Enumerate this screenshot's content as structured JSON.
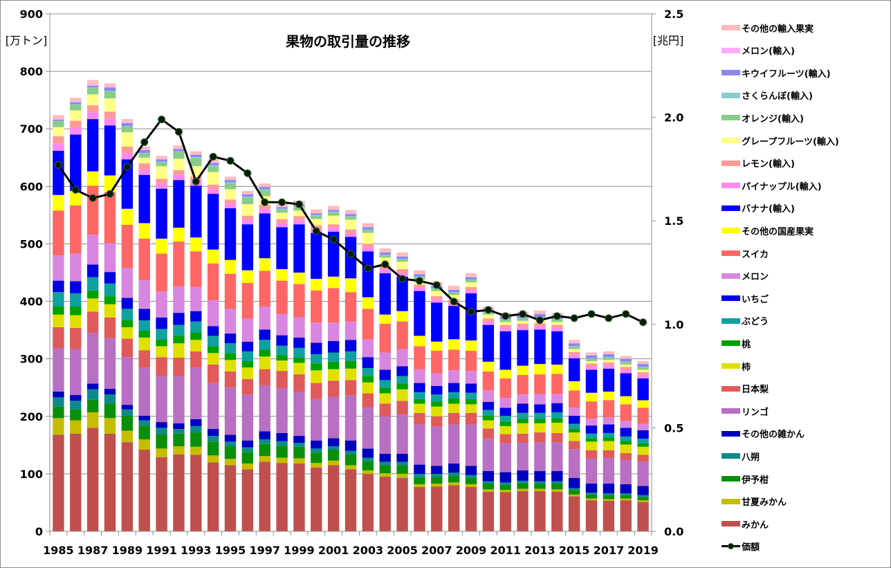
{
  "chart_data": {
    "type": "bar",
    "stacked": true,
    "title": "果物の取引量の推移",
    "ylabel_left": "[万トン]",
    "ylabel_right": "[兆円]",
    "ylim_left": [
      0,
      900
    ],
    "yticks_left": [
      0,
      100,
      200,
      300,
      400,
      500,
      600,
      700,
      800,
      900
    ],
    "ylim_right": [
      0,
      2.5
    ],
    "yticks_right": [
      "0.0",
      "0.5",
      "1.0",
      "1.5",
      "2.0",
      "2.5"
    ],
    "grid": true,
    "legend_position": "right",
    "categories": [
      "1985",
      "1986",
      "1987",
      "1988",
      "1989",
      "1990",
      "1991",
      "1992",
      "1993",
      "1994",
      "1995",
      "1996",
      "1997",
      "1998",
      "1999",
      "2000",
      "2001",
      "2002",
      "2003",
      "2004",
      "2005",
      "2006",
      "2007",
      "2008",
      "2009",
      "2010",
      "2011",
      "2012",
      "2013",
      "2014",
      "2015",
      "2016",
      "2017",
      "2018",
      "2019"
    ],
    "xtick_labels": [
      "1985",
      "1987",
      "1989",
      "1991",
      "1993",
      "1995",
      "1997",
      "1999",
      "2001",
      "2003",
      "2005",
      "2007",
      "2009",
      "2011",
      "2013",
      "2015",
      "2017",
      "2019"
    ],
    "series": [
      {
        "name": "みかん",
        "color": "#c0504d",
        "values": [
          168,
          170,
          180,
          170,
          155,
          142,
          129,
          134,
          133,
          120,
          115,
          108,
          121,
          119,
          118,
          111,
          115,
          108,
          100,
          95,
          93,
          77,
          78,
          80,
          77,
          69,
          68,
          70,
          70,
          69,
          61,
          54,
          53,
          54,
          51
        ]
      },
      {
        "name": "甘夏みかん",
        "color": "#c4bd00",
        "values": [
          29,
          23,
          27,
          27,
          20,
          18,
          15,
          14,
          14,
          12,
          11,
          10,
          10,
          9,
          9,
          8,
          8,
          7,
          6,
          6,
          7,
          5,
          5,
          5,
          5,
          4,
          4,
          4,
          4,
          4,
          3,
          3,
          3,
          3,
          3
        ]
      },
      {
        "name": "伊予柑",
        "color": "#0a8f0a",
        "values": [
          20,
          19,
          22,
          25,
          26,
          24,
          25,
          22,
          25,
          24,
          22,
          20,
          21,
          21,
          20,
          18,
          19,
          19,
          16,
          14,
          15,
          12,
          12,
          12,
          11,
          10,
          9,
          10,
          9,
          10,
          8,
          7,
          7,
          6,
          6
        ]
      },
      {
        "name": "八朔",
        "color": "#0e8a8a",
        "values": [
          16,
          15,
          18,
          16,
          11,
          9,
          11,
          8,
          11,
          10,
          8,
          8,
          8,
          8,
          7,
          7,
          6,
          6,
          6,
          6,
          6,
          6,
          5,
          5,
          5,
          4,
          4,
          4,
          4,
          4,
          3,
          3,
          3,
          3,
          3
        ]
      },
      {
        "name": "その他の雑かん",
        "color": "#0000c0",
        "values": [
          10,
          10,
          10,
          10,
          8,
          8,
          10,
          10,
          12,
          12,
          12,
          12,
          14,
          14,
          12,
          14,
          14,
          18,
          16,
          14,
          14,
          16,
          14,
          16,
          16,
          18,
          18,
          18,
          18,
          18,
          18,
          16,
          17,
          16,
          16
        ]
      },
      {
        "name": "リンゴ",
        "color": "#b86fc4",
        "values": [
          75,
          80,
          88,
          88,
          83,
          84,
          80,
          82,
          90,
          80,
          82,
          80,
          80,
          78,
          77,
          72,
          72,
          78,
          72,
          65,
          68,
          70,
          68,
          68,
          72,
          56,
          50,
          48,
          50,
          50,
          50,
          44,
          45,
          42,
          42
        ]
      },
      {
        "name": "日本梨",
        "color": "#e05a5a",
        "values": [
          37,
          37,
          37,
          36,
          32,
          30,
          33,
          32,
          28,
          32,
          28,
          27,
          28,
          30,
          30,
          28,
          28,
          27,
          24,
          22,
          24,
          20,
          18,
          20,
          20,
          18,
          16,
          16,
          17,
          16,
          14,
          14,
          13,
          12,
          12
        ]
      },
      {
        "name": "柿",
        "color": "#e0e000",
        "values": [
          22,
          22,
          23,
          23,
          20,
          22,
          19,
          25,
          20,
          20,
          20,
          20,
          22,
          18,
          20,
          22,
          20,
          20,
          19,
          18,
          20,
          16,
          17,
          16,
          15,
          14,
          14,
          18,
          16,
          18,
          15,
          15,
          16,
          15,
          14
        ]
      },
      {
        "name": "桃",
        "color": "#00a000",
        "values": [
          14,
          15,
          14,
          14,
          12,
          12,
          12,
          13,
          13,
          12,
          12,
          11,
          12,
          10,
          10,
          12,
          13,
          13,
          11,
          10,
          10,
          8,
          9,
          9,
          9,
          8,
          8,
          8,
          8,
          8,
          6,
          6,
          6,
          6,
          6
        ]
      },
      {
        "name": "ぶどう",
        "color": "#10a0a0",
        "values": [
          25,
          23,
          23,
          22,
          20,
          18,
          18,
          19,
          19,
          18,
          17,
          17,
          17,
          16,
          16,
          16,
          16,
          17,
          14,
          13,
          13,
          12,
          12,
          11,
          11,
          10,
          10,
          10,
          10,
          10,
          9,
          8,
          8,
          8,
          8
        ]
      },
      {
        "name": "いちご",
        "color": "#0000e0",
        "values": [
          20,
          21,
          22,
          20,
          19,
          20,
          20,
          21,
          18,
          17,
          17,
          17,
          18,
          18,
          18,
          20,
          20,
          20,
          19,
          18,
          17,
          16,
          15,
          16,
          16,
          14,
          14,
          16,
          15,
          16,
          14,
          14,
          15,
          15,
          15
        ]
      },
      {
        "name": "メロン",
        "color": "#d986e0",
        "values": [
          44,
          48,
          52,
          50,
          52,
          50,
          45,
          46,
          42,
          45,
          43,
          40,
          40,
          37,
          35,
          35,
          32,
          32,
          31,
          30,
          30,
          24,
          22,
          22,
          22,
          20,
          17,
          16,
          18,
          16,
          14,
          12,
          12,
          12,
          11
        ]
      },
      {
        "name": "スイカ",
        "color": "#ff6666",
        "values": [
          78,
          84,
          85,
          89,
          75,
          72,
          66,
          78,
          62,
          64,
          61,
          62,
          62,
          58,
          58,
          56,
          60,
          51,
          53,
          50,
          48,
          40,
          39,
          36,
          35,
          33,
          34,
          34,
          34,
          35,
          30,
          30,
          30,
          29,
          28
        ]
      },
      {
        "name": "その他の国産果実",
        "color": "#ffff00",
        "values": [
          27,
          25,
          25,
          29,
          28,
          27,
          26,
          24,
          24,
          24,
          24,
          22,
          22,
          20,
          20,
          20,
          20,
          24,
          20,
          16,
          18,
          18,
          16,
          18,
          18,
          17,
          15,
          16,
          18,
          16,
          16,
          15,
          15,
          14,
          13
        ]
      },
      {
        "name": "バナナ(輸入)",
        "color": "#0000ff",
        "values": [
          77,
          98,
          91,
          87,
          86,
          84,
          87,
          83,
          90,
          97,
          90,
          80,
          78,
          73,
          84,
          80,
          78,
          72,
          80,
          72,
          60,
          78,
          68,
          58,
          82,
          64,
          67,
          62,
          60,
          58,
          40,
          40,
          40,
          40,
          38
        ]
      },
      {
        "name": "パイナップル(輸入)",
        "color": "#ff88ee",
        "values": [
          12,
          12,
          12,
          12,
          11,
          10,
          9,
          9,
          8,
          8,
          8,
          8,
          8,
          7,
          7,
          7,
          7,
          7,
          7,
          7,
          7,
          6,
          6,
          6,
          6,
          6,
          6,
          6,
          6,
          6,
          6,
          6,
          6,
          6,
          6
        ]
      },
      {
        "name": "レモン(輸入)",
        "color": "#ff9999",
        "values": [
          13,
          12,
          12,
          12,
          11,
          10,
          8,
          8,
          8,
          8,
          7,
          7,
          7,
          7,
          7,
          6,
          6,
          6,
          6,
          6,
          6,
          5,
          5,
          5,
          5,
          5,
          5,
          5,
          5,
          5,
          5,
          5,
          5,
          5,
          5
        ]
      },
      {
        "name": "グレープフルーツ(輸入)",
        "color": "#ffff88",
        "values": [
          16,
          18,
          19,
          23,
          25,
          10,
          22,
          20,
          18,
          22,
          18,
          20,
          15,
          11,
          10,
          11,
          15,
          17,
          19,
          14,
          13,
          9,
          9,
          8,
          8,
          7,
          5,
          5,
          6,
          5,
          5,
          4,
          4,
          4,
          4
        ]
      },
      {
        "name": "オレンジ(輸入)",
        "color": "#88cc88",
        "values": [
          10,
          10,
          11,
          12,
          10,
          7,
          7,
          12,
          14,
          10,
          10,
          11,
          10,
          6,
          6,
          6,
          6,
          5,
          5,
          4,
          4,
          4,
          4,
          4,
          4,
          3,
          4,
          4,
          4,
          4,
          4,
          4,
          4,
          4,
          4
        ]
      },
      {
        "name": "さくらんぼ(輸入)",
        "color": "#88cccc",
        "values": [
          1,
          1,
          1,
          1,
          1,
          1,
          1,
          1,
          2,
          2,
          2,
          2,
          2,
          1,
          1,
          1,
          1,
          1,
          1,
          1,
          1,
          1,
          1,
          1,
          1,
          1,
          1,
          1,
          1,
          1,
          1,
          1,
          1,
          1,
          1
        ]
      },
      {
        "name": "キウイフルーツ(輸入)",
        "color": "#8888ee",
        "values": [
          2,
          3,
          3,
          6,
          5,
          5,
          4,
          4,
          4,
          4,
          4,
          4,
          4,
          3,
          3,
          3,
          3,
          4,
          4,
          4,
          4,
          4,
          4,
          4,
          4,
          4,
          5,
          5,
          5,
          5,
          5,
          5,
          5,
          5,
          5
        ]
      },
      {
        "name": "メロン(輸入)",
        "color": "#ffaaff",
        "values": [
          2,
          2,
          2,
          2,
          2,
          1,
          1,
          1,
          1,
          1,
          1,
          1,
          1,
          1,
          1,
          1,
          1,
          1,
          1,
          1,
          1,
          1,
          1,
          1,
          1,
          1,
          1,
          1,
          1,
          1,
          1,
          1,
          1,
          1,
          1
        ]
      },
      {
        "name": "その他の輸入果実",
        "color": "#ffbbbb",
        "values": [
          6,
          6,
          8,
          5,
          5,
          5,
          5,
          5,
          5,
          5,
          5,
          5,
          5,
          5,
          6,
          6,
          6,
          6,
          6,
          6,
          6,
          6,
          6,
          6,
          6,
          5,
          5,
          5,
          5,
          5,
          5,
          4,
          4,
          4,
          4
        ]
      }
    ],
    "line_series": {
      "name": "価額",
      "axis": "right",
      "color": "#000000",
      "marker_color": "#0a1a0a",
      "values": [
        1.77,
        1.65,
        1.61,
        1.63,
        1.76,
        1.88,
        1.99,
        1.93,
        1.69,
        1.81,
        1.79,
        1.73,
        1.59,
        1.59,
        1.58,
        1.45,
        1.41,
        1.34,
        1.27,
        1.29,
        1.22,
        1.21,
        1.19,
        1.11,
        1.06,
        1.07,
        1.04,
        1.05,
        1.02,
        1.04,
        1.03,
        1.05,
        1.03,
        1.05,
        1.01
      ]
    }
  }
}
